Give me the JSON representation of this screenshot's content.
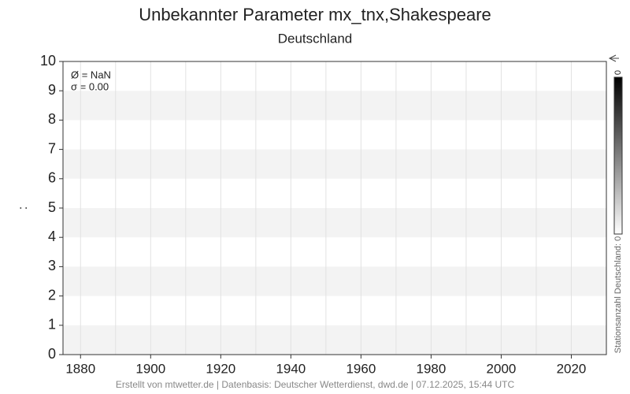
{
  "chart_data": {
    "type": "line",
    "title": "Unbekannter Parameter mx_tnx,Shakespeare",
    "subtitle": "Deutschland",
    "ylabel": ":",
    "series": [],
    "xlim": [
      1875,
      2030
    ],
    "xticks": [
      1880,
      1900,
      1920,
      1940,
      1960,
      1980,
      2000,
      2020
    ],
    "xgrid": [
      1880,
      1890,
      1900,
      1910,
      1920,
      1930,
      1940,
      1950,
      1960,
      1970,
      1980,
      1990,
      2000,
      2010,
      2020
    ],
    "ylim": [
      0,
      10
    ],
    "yticks": [
      0,
      1,
      2,
      3,
      4,
      5,
      6,
      7,
      8,
      9,
      10
    ],
    "bands": true,
    "band_color": "#f3f3f3",
    "annotations": [
      "Ø = NaN",
      "σ = 0.00"
    ],
    "colorbar": {
      "label": "Stationsanzahl Deutschland: 0",
      "ticks": [
        0
      ],
      "colors": [
        "#000000",
        "#ffffff"
      ]
    },
    "footer": "Erstellt von mtwetter.de | Datenbasis: Deutscher Wetterdienst, dwd.de | 07.12.2025, 15:44 UTC"
  }
}
